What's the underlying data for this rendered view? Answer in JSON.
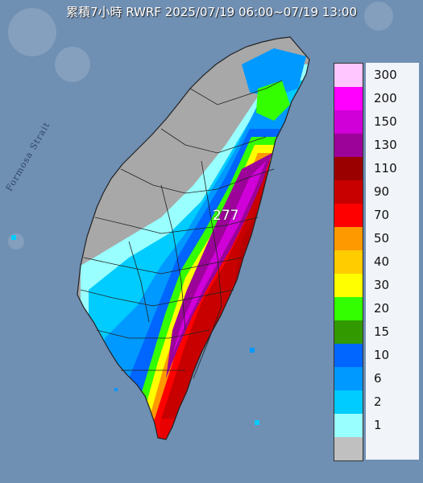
{
  "title": "累積7小時 RWRF 2025/07/19 06:00~07/19 13:00",
  "strait_label": "Formosa Strait",
  "max_value": "277",
  "legend": [
    {
      "label": "300",
      "color": "#ffc6ff"
    },
    {
      "label": "200",
      "color": "#ff00ff"
    },
    {
      "label": "150",
      "color": "#d000d9"
    },
    {
      "label": "130",
      "color": "#9b0399"
    },
    {
      "label": "110",
      "color": "#9a0000"
    },
    {
      "label": "90",
      "color": "#c80000"
    },
    {
      "label": "70",
      "color": "#ff0000"
    },
    {
      "label": "50",
      "color": "#ff9900"
    },
    {
      "label": "40",
      "color": "#ffcc00"
    },
    {
      "label": "30",
      "color": "#ffff00"
    },
    {
      "label": "20",
      "color": "#33ff00"
    },
    {
      "label": "15",
      "color": "#339900"
    },
    {
      "label": "10",
      "color": "#0066ff"
    },
    {
      "label": "6",
      "color": "#0099ff"
    },
    {
      "label": "2",
      "color": "#00ccff"
    },
    {
      "label": "1",
      "color": "#99ffff"
    },
    {
      "label": "",
      "color": "#c0c0c0"
    }
  ],
  "colors": {
    "sea": "#6f8fb3",
    "land_gray": "#a8a8a8"
  }
}
